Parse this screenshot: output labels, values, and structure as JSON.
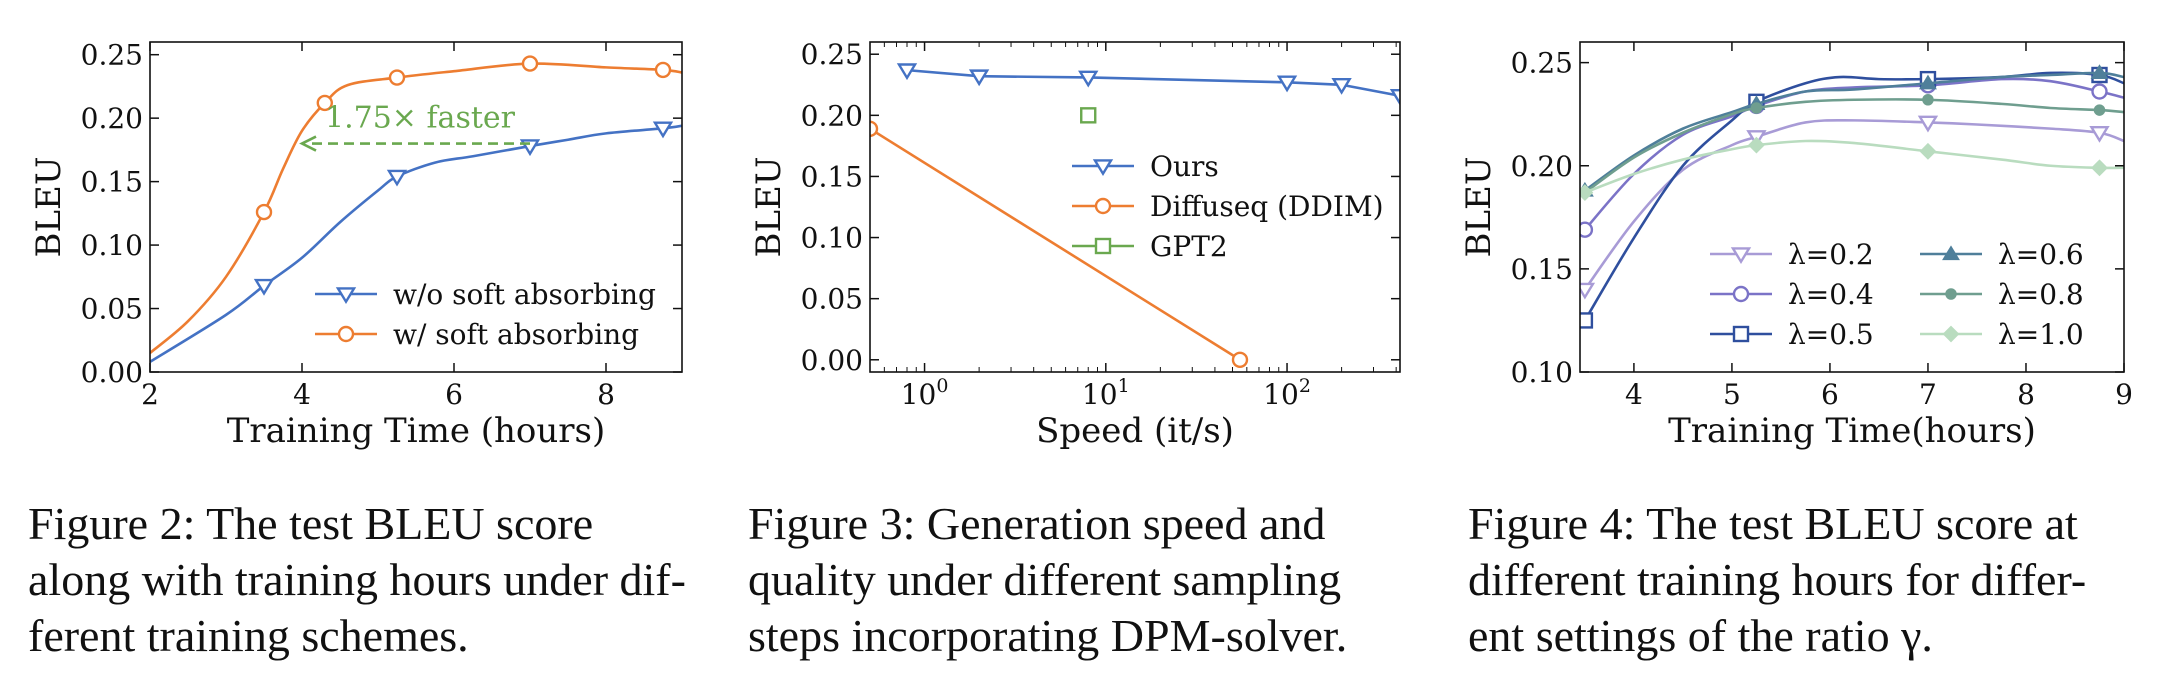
{
  "chart_data": [
    {
      "type": "line",
      "figure_label": "Figure 2:",
      "caption_lines": [
        "The test BLEU score",
        "along with training hours under dif-",
        "ferent training schemes."
      ],
      "xlabel": "Training Time (hours)",
      "ylabel": "BLEU",
      "xlim": [
        2,
        9
      ],
      "ylim": [
        0,
        0.26
      ],
      "xticks": [
        2,
        4,
        6,
        8
      ],
      "xtick_labels": [
        "2",
        "4",
        "6",
        "8"
      ],
      "yticks": [
        0,
        0.05,
        0.1,
        0.15,
        0.2,
        0.25
      ],
      "ytick_labels": [
        "0.00",
        "0.05",
        "0.10",
        "0.15",
        "0.20",
        "0.25"
      ],
      "legend_position": "lower-right",
      "annotation": {
        "text": "1.75× faster",
        "x_from": 7.0,
        "x_to": 4.0,
        "y": 0.18,
        "color": "#6aa84f"
      },
      "series": [
        {
          "name": "w/o soft absorbing",
          "color": "#4472c4",
          "marker": "triangle-down",
          "curve": [
            [
              2,
              0.008
            ],
            [
              3,
              0.045
            ],
            [
              3.5,
              0.068
            ],
            [
              4,
              0.09
            ],
            [
              4.5,
              0.118
            ],
            [
              5,
              0.143
            ],
            [
              5.25,
              0.154
            ],
            [
              5.75,
              0.165
            ],
            [
              6.25,
              0.17
            ],
            [
              7,
              0.178
            ],
            [
              7.5,
              0.183
            ],
            [
              8,
              0.188
            ],
            [
              8.75,
              0.192
            ],
            [
              9,
              0.194
            ]
          ],
          "markers": [
            [
              3.5,
              0.068
            ],
            [
              5.25,
              0.154
            ],
            [
              7,
              0.178
            ],
            [
              8.75,
              0.192
            ]
          ]
        },
        {
          "name": "w/ soft absorbing",
          "color": "#ed7d31",
          "marker": "circle",
          "curve": [
            [
              2,
              0.015
            ],
            [
              2.5,
              0.04
            ],
            [
              3,
              0.075
            ],
            [
              3.5,
              0.126
            ],
            [
              3.75,
              0.16
            ],
            [
              4,
              0.19
            ],
            [
              4.3,
              0.212
            ],
            [
              4.6,
              0.226
            ],
            [
              5.25,
              0.232
            ],
            [
              6,
              0.237
            ],
            [
              7,
              0.243
            ],
            [
              8,
              0.24
            ],
            [
              8.75,
              0.238
            ],
            [
              9,
              0.236
            ]
          ],
          "markers": [
            [
              3.5,
              0.126
            ],
            [
              4.3,
              0.212
            ],
            [
              5.25,
              0.232
            ],
            [
              7,
              0.243
            ],
            [
              8.75,
              0.238
            ]
          ]
        }
      ]
    },
    {
      "type": "line",
      "figure_label": "Figure 3:",
      "caption_lines": [
        "Generation speed and",
        "quality under different sampling",
        "steps incorporating DPM-solver."
      ],
      "xlabel": "Speed (it/s)",
      "ylabel": "BLEU",
      "xscale": "log",
      "xlim": [
        0.5,
        420
      ],
      "ylim": [
        -0.01,
        0.26
      ],
      "xticks": [
        1,
        10,
        100
      ],
      "xtick_labels": [
        "10",
        "10",
        "10"
      ],
      "xtick_exponents": [
        "0",
        "1",
        "2"
      ],
      "yticks": [
        0,
        0.05,
        0.1,
        0.15,
        0.2,
        0.25
      ],
      "ytick_labels": [
        "0.00",
        "0.05",
        "0.10",
        "0.15",
        "0.20",
        "0.25"
      ],
      "legend_position": "center",
      "series": [
        {
          "name": "Ours",
          "color": "#4472c4",
          "marker": "triangle-down",
          "points": [
            [
              0.8,
              0.237
            ],
            [
              2,
              0.232
            ],
            [
              8,
              0.231
            ],
            [
              100,
              0.227
            ],
            [
              200,
              0.225
            ],
            [
              420,
              0.216
            ]
          ]
        },
        {
          "name": "Diffuseq (DDIM)",
          "color": "#ed7d31",
          "marker": "circle",
          "points": [
            [
              0.5,
              0.189
            ],
            [
              55,
              0.0
            ]
          ]
        },
        {
          "name": "GPT2",
          "color": "#6aa84f",
          "marker": "square",
          "points": [
            [
              8,
              0.2
            ]
          ]
        }
      ]
    },
    {
      "type": "line",
      "figure_label": "Figure 4:",
      "caption_lines": [
        "The test BLEU score at",
        "different training hours for differ-",
        "ent settings of the ratio γ."
      ],
      "xlabel": "Training Time(hours)",
      "ylabel": "BLEU",
      "xlim": [
        3.45,
        9
      ],
      "ylim": [
        0.1,
        0.26
      ],
      "xticks": [
        4,
        5,
        6,
        7,
        8,
        9
      ],
      "xtick_labels": [
        "4",
        "5",
        "6",
        "7",
        "8",
        "9"
      ],
      "yticks": [
        0.1,
        0.15,
        0.2,
        0.25
      ],
      "ytick_labels": [
        "0.10",
        "0.15",
        "0.20",
        "0.25"
      ],
      "legend_position": "lower-right",
      "series": [
        {
          "name": "λ=0.2",
          "color": "#a89bd6",
          "marker": "triangle-down",
          "curve": [
            [
              3.5,
              0.14
            ],
            [
              4,
              0.173
            ],
            [
              4.5,
              0.198
            ],
            [
              5,
              0.21
            ],
            [
              5.25,
              0.214
            ],
            [
              5.75,
              0.221
            ],
            [
              6.25,
              0.222
            ],
            [
              7,
              0.221
            ],
            [
              7.5,
              0.22
            ],
            [
              8.25,
              0.218
            ],
            [
              8.75,
              0.216
            ],
            [
              9,
              0.212
            ]
          ],
          "markers": [
            [
              3.5,
              0.14
            ],
            [
              5.25,
              0.214
            ],
            [
              7,
              0.221
            ],
            [
              8.75,
              0.216
            ]
          ]
        },
        {
          "name": "λ=0.4",
          "color": "#7b73c7",
          "marker": "circle",
          "curve": [
            [
              3.5,
              0.169
            ],
            [
              4,
              0.196
            ],
            [
              4.5,
              0.215
            ],
            [
              5,
              0.224
            ],
            [
              5.25,
              0.229
            ],
            [
              5.75,
              0.236
            ],
            [
              6.25,
              0.238
            ],
            [
              7,
              0.239
            ],
            [
              7.75,
              0.242
            ],
            [
              8.25,
              0.241
            ],
            [
              8.75,
              0.236
            ],
            [
              9,
              0.233
            ]
          ],
          "markers": [
            [
              3.5,
              0.169
            ],
            [
              5.25,
              0.229
            ],
            [
              7,
              0.239
            ],
            [
              8.75,
              0.236
            ]
          ]
        },
        {
          "name": "λ=0.5",
          "color": "#2f4f9e",
          "marker": "square",
          "curve": [
            [
              3.5,
              0.125
            ],
            [
              4,
              0.165
            ],
            [
              4.5,
              0.2
            ],
            [
              5,
              0.222
            ],
            [
              5.25,
              0.231
            ],
            [
              5.75,
              0.24
            ],
            [
              6.1,
              0.243
            ],
            [
              6.5,
              0.242
            ],
            [
              7,
              0.242
            ],
            [
              7.75,
              0.243
            ],
            [
              8.25,
              0.245
            ],
            [
              8.75,
              0.244
            ],
            [
              9,
              0.24
            ]
          ],
          "markers": [
            [
              3.5,
              0.125
            ],
            [
              5.25,
              0.231
            ],
            [
              7,
              0.242
            ],
            [
              8.75,
              0.244
            ]
          ]
        },
        {
          "name": "λ=0.6",
          "color": "#4f7f9a",
          "marker": "triangle-up",
          "curve": [
            [
              3.5,
              0.188
            ],
            [
              4,
              0.205
            ],
            [
              4.5,
              0.218
            ],
            [
              5,
              0.226
            ],
            [
              5.25,
              0.23
            ],
            [
              5.75,
              0.236
            ],
            [
              6.25,
              0.237
            ],
            [
              7,
              0.24
            ],
            [
              7.75,
              0.243
            ],
            [
              8.25,
              0.244
            ],
            [
              8.75,
              0.245
            ],
            [
              9,
              0.243
            ]
          ],
          "markers": [
            [
              3.5,
              0.188
            ],
            [
              5.25,
              0.23
            ],
            [
              7,
              0.24
            ],
            [
              8.75,
              0.245
            ]
          ]
        },
        {
          "name": "λ=0.8",
          "color": "#6f9e8f",
          "marker": "dot",
          "curve": [
            [
              3.5,
              0.187
            ],
            [
              4,
              0.204
            ],
            [
              4.5,
              0.216
            ],
            [
              5,
              0.225
            ],
            [
              5.25,
              0.228
            ],
            [
              5.75,
              0.231
            ],
            [
              6.25,
              0.232
            ],
            [
              7,
              0.232
            ],
            [
              7.75,
              0.23
            ],
            [
              8.25,
              0.228
            ],
            [
              8.75,
              0.227
            ],
            [
              9,
              0.226
            ]
          ],
          "markers": [
            [
              3.5,
              0.187
            ],
            [
              5.25,
              0.228
            ],
            [
              7,
              0.232
            ],
            [
              8.75,
              0.227
            ]
          ]
        },
        {
          "name": "λ=1.0",
          "color": "#b9dcbf",
          "marker": "diamond",
          "curve": [
            [
              3.5,
              0.187
            ],
            [
              4,
              0.196
            ],
            [
              4.5,
              0.203
            ],
            [
              5,
              0.208
            ],
            [
              5.25,
              0.21
            ],
            [
              5.75,
              0.212
            ],
            [
              6.25,
              0.211
            ],
            [
              7,
              0.207
            ],
            [
              7.75,
              0.203
            ],
            [
              8.25,
              0.2
            ],
            [
              8.75,
              0.199
            ],
            [
              9,
              0.199
            ]
          ],
          "markers": [
            [
              3.5,
              0.187
            ],
            [
              5.25,
              0.21
            ],
            [
              7,
              0.207
            ],
            [
              8.75,
              0.199
            ]
          ]
        }
      ]
    }
  ]
}
